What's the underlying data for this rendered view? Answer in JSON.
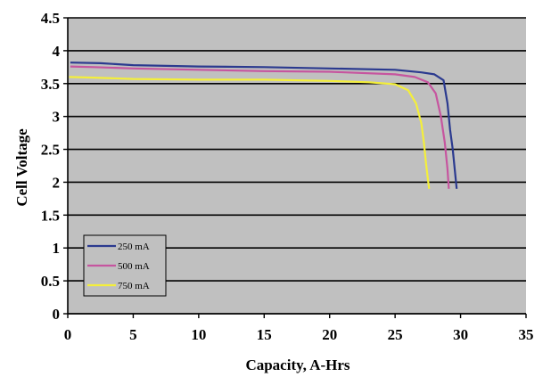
{
  "chart_data": {
    "type": "line",
    "xlabel": "Capacity, A-Hrs",
    "ylabel": "Cell Voltage",
    "xlim": [
      0,
      35
    ],
    "ylim": [
      0,
      4.5
    ],
    "x_ticks": [
      0,
      5,
      10,
      15,
      20,
      25,
      30,
      35
    ],
    "y_ticks": [
      0,
      0.5,
      1,
      1.5,
      2,
      2.5,
      3,
      3.5,
      4,
      4.5
    ],
    "x_tick_labels": [
      "0",
      "5",
      "10",
      "15",
      "20",
      "25",
      "30",
      "35"
    ],
    "y_tick_labels": [
      "0",
      "0.5",
      "1",
      "1.5",
      "2",
      "2.5",
      "3",
      "3.5",
      "4",
      "4.5"
    ],
    "grid": "horizontal",
    "background": "#c0c0c0",
    "legend_position": "bottom-left",
    "series": [
      {
        "name": "250 mA",
        "color": "#2b3a8f",
        "x": [
          0.2,
          2.5,
          5,
          10,
          15,
          20,
          25,
          27,
          28,
          28.7,
          29.0,
          29.2,
          29.4,
          29.55,
          29.7
        ],
        "y": [
          3.82,
          3.81,
          3.78,
          3.76,
          3.75,
          3.73,
          3.71,
          3.67,
          3.64,
          3.55,
          3.2,
          2.8,
          2.5,
          2.2,
          1.9
        ]
      },
      {
        "name": "500 mA",
        "color": "#c6559f",
        "x": [
          0.2,
          2,
          5,
          10,
          15,
          20,
          25,
          26.5,
          27.5,
          28.1,
          28.5,
          28.8,
          29.0,
          29.1
        ],
        "y": [
          3.76,
          3.75,
          3.73,
          3.71,
          3.69,
          3.68,
          3.64,
          3.6,
          3.52,
          3.35,
          3.0,
          2.6,
          2.2,
          1.9
        ]
      },
      {
        "name": "750 mA",
        "color": "#f4ef3a",
        "x": [
          0.1,
          2,
          5,
          10,
          15,
          20,
          23,
          25,
          26,
          26.6,
          27.0,
          27.2,
          27.35,
          27.5,
          27.6
        ],
        "y": [
          3.6,
          3.59,
          3.57,
          3.56,
          3.56,
          3.54,
          3.52,
          3.49,
          3.4,
          3.2,
          2.9,
          2.6,
          2.3,
          2.05,
          1.9
        ]
      }
    ]
  }
}
